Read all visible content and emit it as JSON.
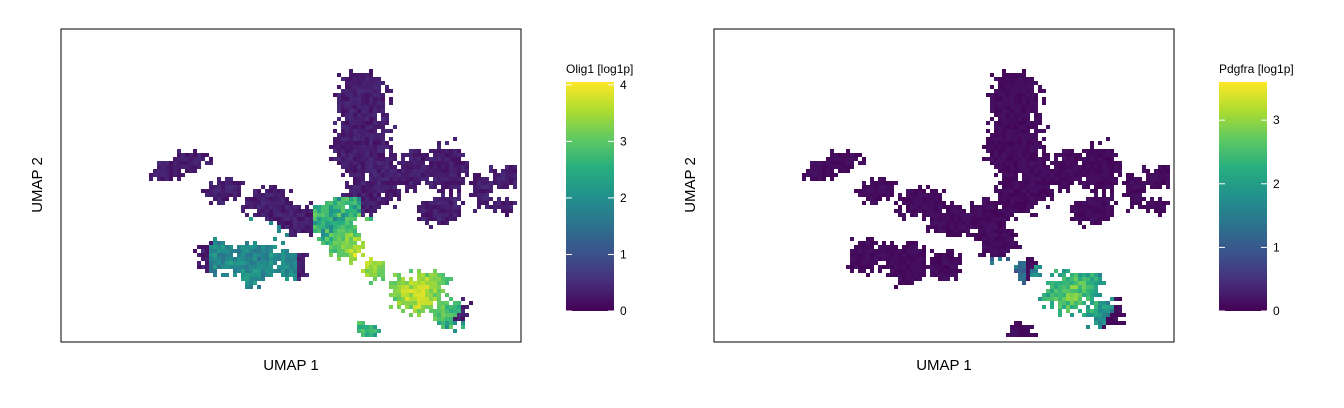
{
  "chart_data": [
    {
      "type": "heatmap",
      "xlabel": "UMAP 1",
      "ylabel": "UMAP 2",
      "legend_title": "Olig1 [log1p]",
      "color_range": [
        0,
        4.05
      ],
      "colorbar_ticks": [
        0,
        1,
        2,
        3,
        4
      ],
      "colormap": "viridis",
      "legend_position": "right",
      "grid": false
    },
    {
      "type": "heatmap",
      "xlabel": "UMAP 1",
      "ylabel": "UMAP 2",
      "legend_title": "Pdgfra [log1p]",
      "color_range": [
        0,
        3.6
      ],
      "colorbar_ticks": [
        0,
        1,
        2,
        3
      ],
      "colormap": "viridis",
      "legend_position": "right",
      "grid": false
    }
  ]
}
